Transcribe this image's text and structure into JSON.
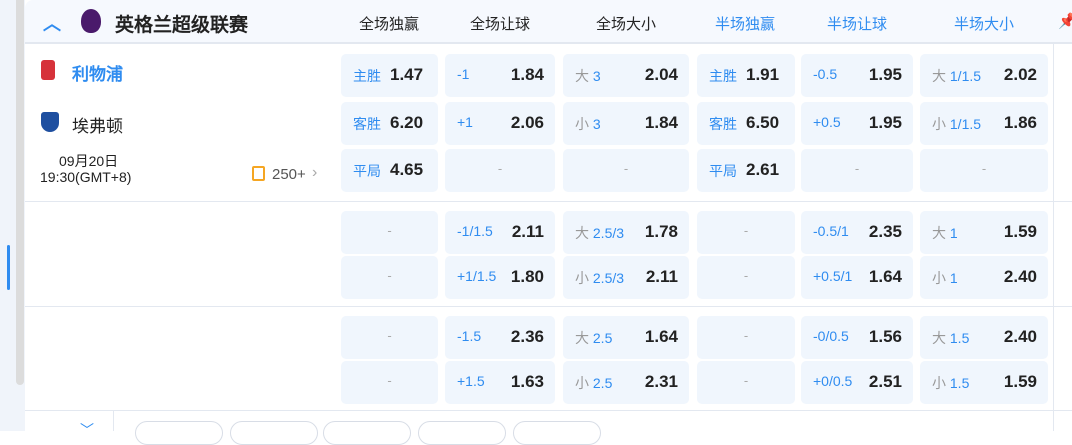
{
  "league": {
    "name": "英格兰超级联赛",
    "logo": "premier-league-logo"
  },
  "columns": [
    "全场独赢",
    "全场让球",
    "全场大小",
    "半场独赢",
    "半场让球",
    "半场大小"
  ],
  "colors": {
    "accent": "#2f8cf0",
    "cell_bg": "#f0f6fd",
    "count_icon": "#f5a623"
  },
  "match": {
    "home": "利物浦",
    "away": "埃弗顿",
    "date": "09月20日",
    "time": "19:30(GMT+8)",
    "more_count": "250+"
  },
  "groups": [
    [
      [
        {
          "l": "主胜",
          "o": "1.47"
        },
        {
          "l": "-1",
          "o": "1.84"
        },
        {
          "p": "大",
          "l": "3",
          "o": "2.04"
        },
        {
          "l": "主胜",
          "o": "1.91"
        },
        {
          "l": "-0.5",
          "o": "1.95"
        },
        {
          "p": "大",
          "l": "1/1.5",
          "o": "2.02"
        }
      ],
      [
        {
          "l": "客胜",
          "o": "6.20"
        },
        {
          "l": "+1",
          "o": "2.06"
        },
        {
          "p": "小",
          "l": "3",
          "o": "1.84"
        },
        {
          "l": "客胜",
          "o": "6.50"
        },
        {
          "l": "+0.5",
          "o": "1.95"
        },
        {
          "p": "小",
          "l": "1/1.5",
          "o": "1.86"
        }
      ],
      [
        {
          "l": "平局",
          "o": "4.65"
        },
        {
          "d": "-"
        },
        {
          "d": "-"
        },
        {
          "l": "平局",
          "o": "2.61"
        },
        {
          "d": "-"
        },
        {
          "d": "-"
        }
      ]
    ],
    [
      [
        {
          "d": "-"
        },
        {
          "l": "-1/1.5",
          "o": "2.11"
        },
        {
          "p": "大",
          "l": "2.5/3",
          "o": "1.78"
        },
        {
          "d": "-"
        },
        {
          "l": "-0.5/1",
          "o": "2.35"
        },
        {
          "p": "大",
          "l": "1",
          "o": "1.59"
        }
      ],
      [
        {
          "d": "-"
        },
        {
          "l": "+1/1.5",
          "o": "1.80"
        },
        {
          "p": "小",
          "l": "2.5/3",
          "o": "2.11"
        },
        {
          "d": "-"
        },
        {
          "l": "+0.5/1",
          "o": "1.64"
        },
        {
          "p": "小",
          "l": "1",
          "o": "2.40"
        }
      ]
    ],
    [
      [
        {
          "d": "-"
        },
        {
          "l": "-1.5",
          "o": "2.36"
        },
        {
          "p": "大",
          "l": "2.5",
          "o": "1.64"
        },
        {
          "d": "-"
        },
        {
          "l": "-0/0.5",
          "o": "1.56"
        },
        {
          "p": "大",
          "l": "1.5",
          "o": "2.40"
        }
      ],
      [
        {
          "d": "-"
        },
        {
          "l": "+1.5",
          "o": "1.63"
        },
        {
          "p": "小",
          "l": "2.5",
          "o": "2.31"
        },
        {
          "d": "-"
        },
        {
          "l": "+0/0.5",
          "o": "2.51"
        },
        {
          "p": "小",
          "l": "1.5",
          "o": "1.59"
        }
      ]
    ]
  ]
}
